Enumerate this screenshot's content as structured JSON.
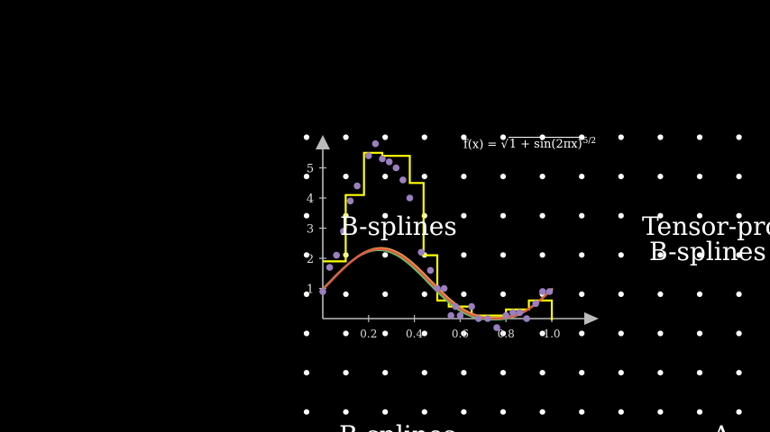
{
  "labels": {
    "bsplines": "B-splines",
    "tensor_line1": "Tensor-pro",
    "tensor_line2": "B-splines",
    "bottom_left": "B-splines",
    "bottom_right": "A"
  },
  "formula": {
    "lhs": "f(x) = ",
    "radical": "√",
    "radicand": "1 + sin(2πx)",
    "exponent": "5/2"
  },
  "colors": {
    "background": "#000000",
    "dots": "#ffffff",
    "axes": "#bbbbbb",
    "step_fit": "#ffff00",
    "smooth_fit_a": "#e05a45",
    "smooth_fit_b": "#e8a43a",
    "smooth_fit_c": "#5ac26a",
    "samples": "#9b7fc0"
  },
  "chart_data": {
    "type": "line",
    "xlim": [
      0,
      1.0
    ],
    "ylim": [
      0,
      5.5
    ],
    "x_ticks": [
      "0.2",
      "0.4",
      "0.6",
      "0.8",
      "1.0"
    ],
    "y_ticks": [
      "1",
      "2",
      "3",
      "4",
      "5"
    ],
    "sample_points": [
      [
        0.0,
        0.9
      ],
      [
        0.03,
        1.7
      ],
      [
        0.06,
        2.1
      ],
      [
        0.09,
        2.9
      ],
      [
        0.12,
        3.9
      ],
      [
        0.15,
        4.4
      ],
      [
        0.2,
        5.4
      ],
      [
        0.23,
        5.8
      ],
      [
        0.26,
        5.3
      ],
      [
        0.29,
        5.2
      ],
      [
        0.32,
        5.0
      ],
      [
        0.35,
        4.6
      ],
      [
        0.38,
        4.0
      ],
      [
        0.43,
        2.2
      ],
      [
        0.47,
        1.6
      ],
      [
        0.5,
        1.0
      ],
      [
        0.53,
        1.0
      ],
      [
        0.56,
        0.1
      ],
      [
        0.58,
        0.4
      ],
      [
        0.6,
        0.1
      ],
      [
        0.65,
        0.4
      ],
      [
        0.68,
        0.0
      ],
      [
        0.72,
        0.0
      ],
      [
        0.76,
        -0.3
      ],
      [
        0.8,
        0.1
      ],
      [
        0.83,
        0.2
      ],
      [
        0.86,
        0.2
      ],
      [
        0.89,
        0.0
      ],
      [
        0.93,
        0.5
      ],
      [
        0.96,
        0.9
      ],
      [
        0.99,
        0.9
      ]
    ],
    "step_fit": {
      "edges": [
        0,
        0.1,
        0.18,
        0.26,
        0.38,
        0.44,
        0.5,
        0.55,
        0.65,
        0.8,
        0.9,
        1.0
      ],
      "levels": [
        1.9,
        4.1,
        5.5,
        5.4,
        4.5,
        2.1,
        0.6,
        0.4,
        0.1,
        0.3,
        0.6
      ]
    },
    "function_expr": "sqrt(1+sin(2*pi*x))^(5/2)"
  }
}
